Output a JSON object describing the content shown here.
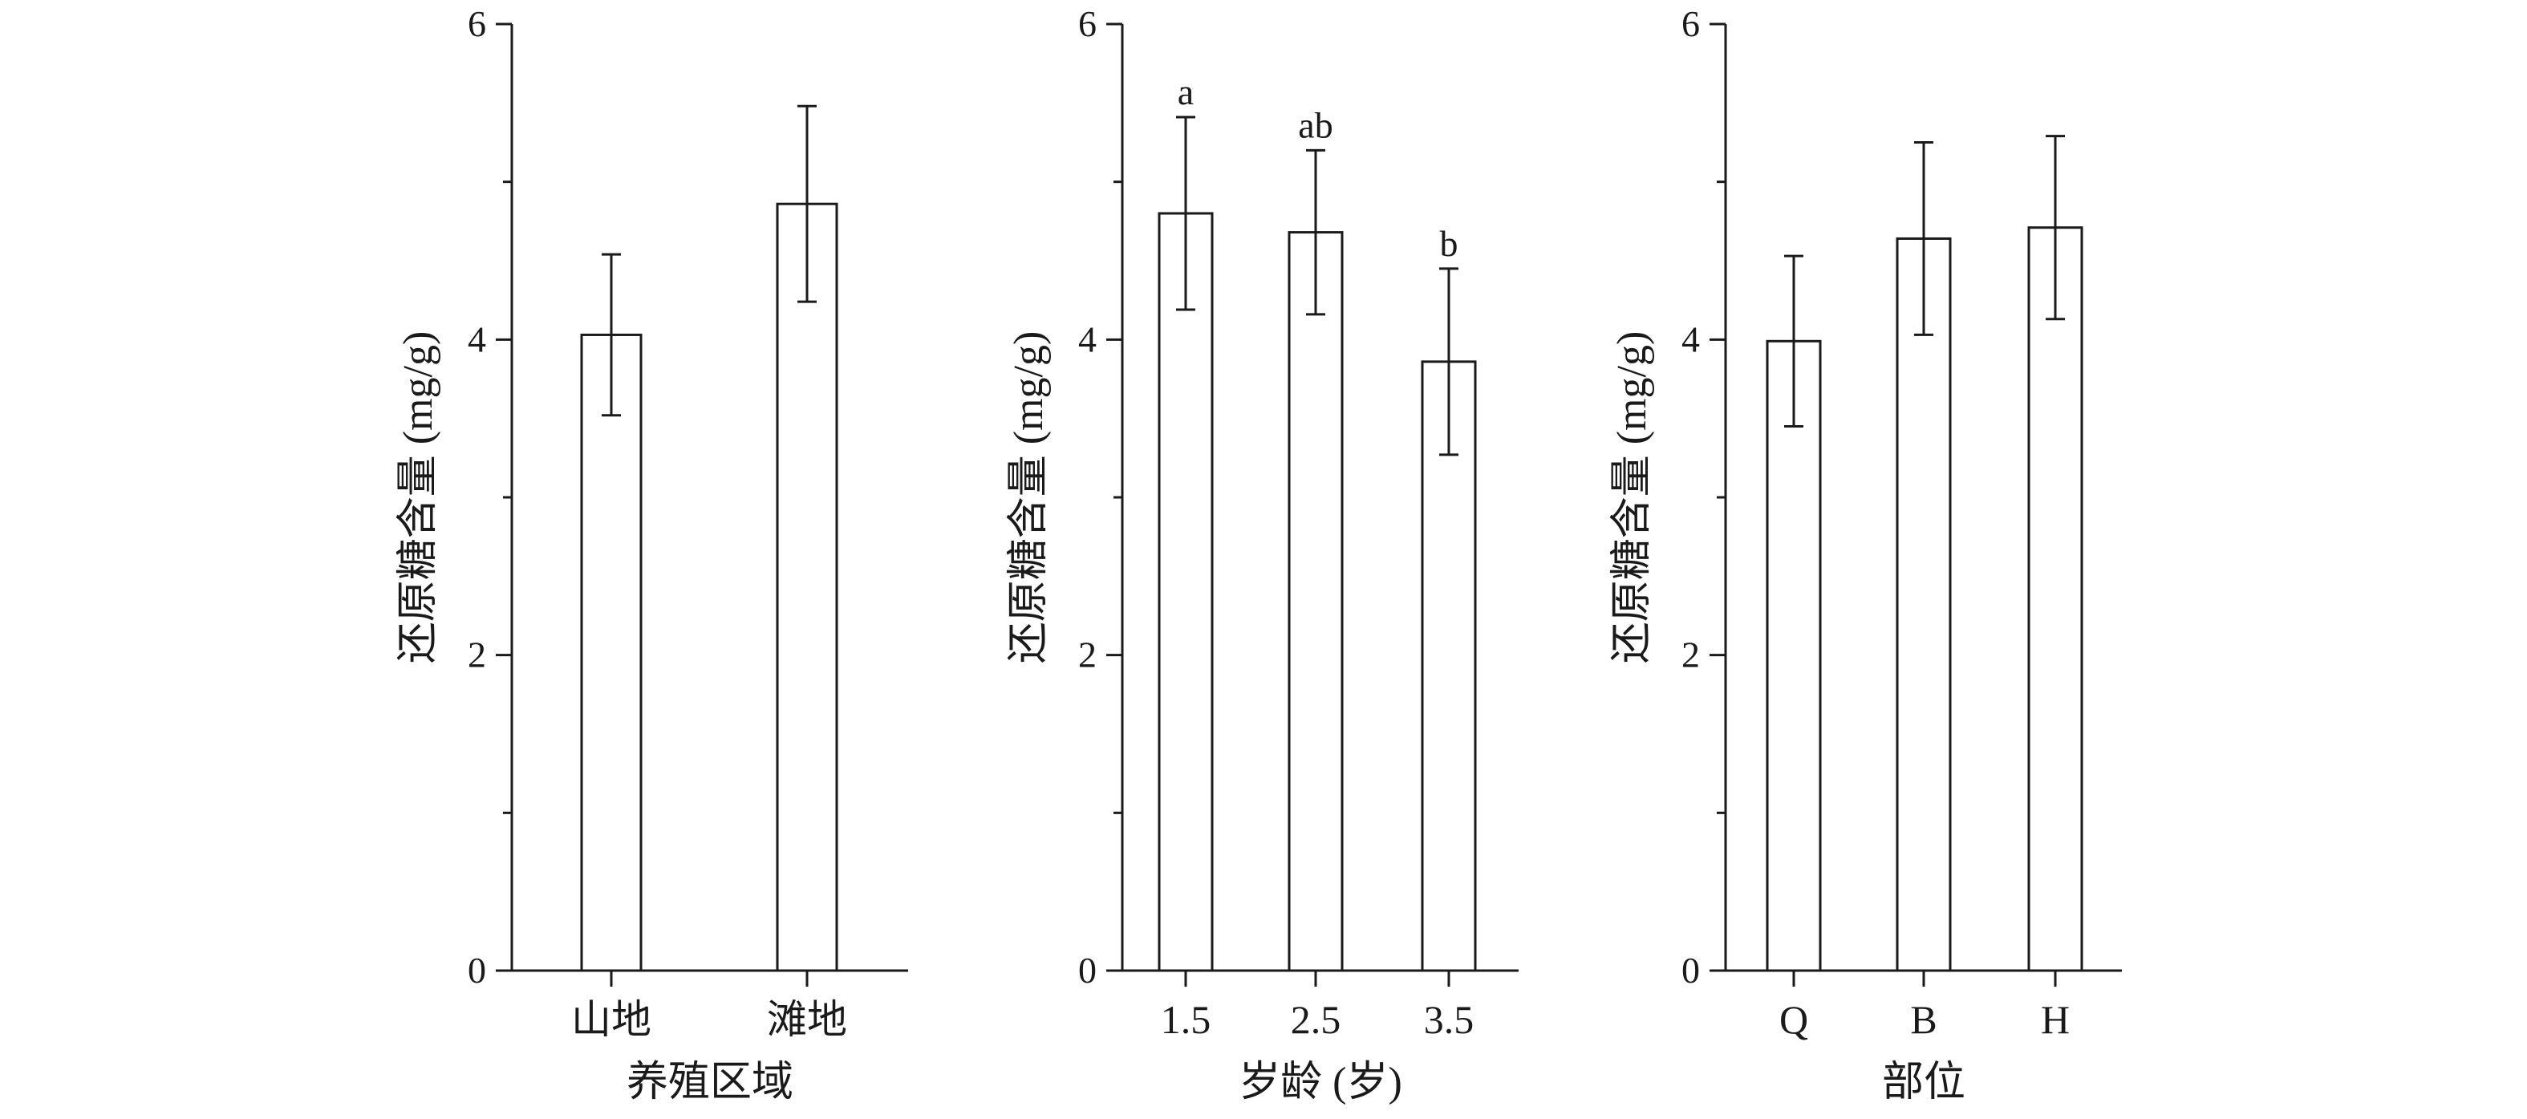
{
  "chart_data": [
    {
      "type": "bar",
      "categories": [
        "山地",
        "滩地"
      ],
      "values": [
        4.03,
        4.86
      ],
      "errors": [
        0.51,
        0.62
      ],
      "xlabel": "养殖区域",
      "ylabel": "还原糖含量 (mg/g)",
      "ylim": [
        0,
        6
      ],
      "yticks": [
        0,
        2,
        4,
        6
      ],
      "annotations": [],
      "grid": false
    },
    {
      "type": "bar",
      "categories": [
        "1.5",
        "2.5",
        "3.5"
      ],
      "values": [
        4.8,
        4.68,
        3.86
      ],
      "errors": [
        0.61,
        0.52,
        0.59
      ],
      "xlabel": "岁龄 (岁)",
      "ylabel": "还原糖含量 (mg/g)",
      "ylim": [
        0,
        6
      ],
      "yticks": [
        0,
        2,
        4,
        6
      ],
      "annotations": [
        "a",
        "ab",
        "b"
      ],
      "grid": false
    },
    {
      "type": "bar",
      "categories": [
        "Q",
        "B",
        "H"
      ],
      "values": [
        3.99,
        4.64,
        4.71
      ],
      "errors": [
        0.54,
        0.61,
        0.58
      ],
      "xlabel": "部位",
      "ylabel": "还原糖含量 (mg/g)",
      "ylim": [
        0,
        6
      ],
      "yticks": [
        0,
        2,
        4,
        6
      ],
      "annotations": [],
      "grid": false
    }
  ]
}
